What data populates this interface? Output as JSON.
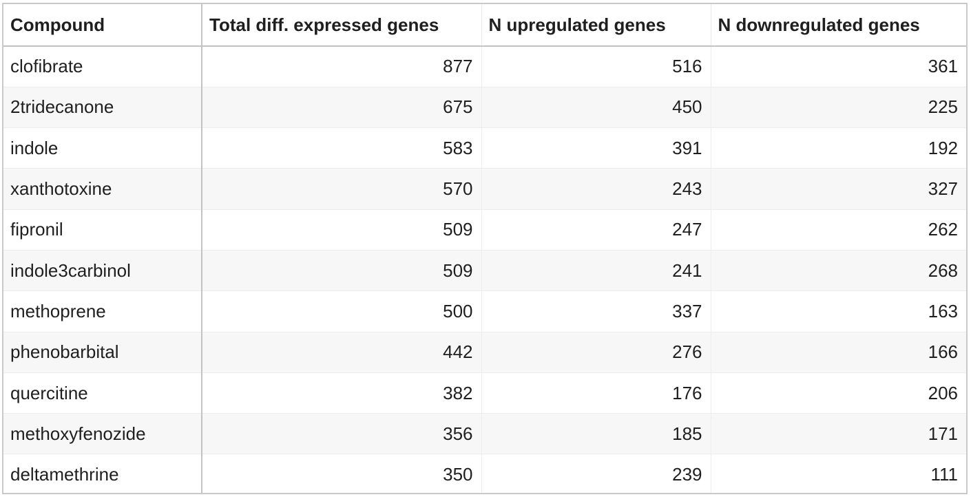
{
  "table": {
    "headers": [
      "Compound",
      "Total diff. expressed genes",
      "N upregulated genes",
      "N downregulated genes"
    ],
    "rows": [
      [
        "clofibrate",
        "877",
        "516",
        "361"
      ],
      [
        "2tridecanone",
        "675",
        "450",
        "225"
      ],
      [
        "indole",
        "583",
        "391",
        "192"
      ],
      [
        "xanthotoxine",
        "570",
        "243",
        "327"
      ],
      [
        "fipronil",
        "509",
        "247",
        "262"
      ],
      [
        "indole3carbinol",
        "509",
        "241",
        "268"
      ],
      [
        "methoprene",
        "500",
        "337",
        "163"
      ],
      [
        "phenobarbital",
        "442",
        "276",
        "166"
      ],
      [
        "quercitine",
        "382",
        "176",
        "206"
      ],
      [
        "methoxyfenozide",
        "356",
        "185",
        "171"
      ],
      [
        "deltamethrine",
        "350",
        "239",
        "111"
      ]
    ]
  }
}
